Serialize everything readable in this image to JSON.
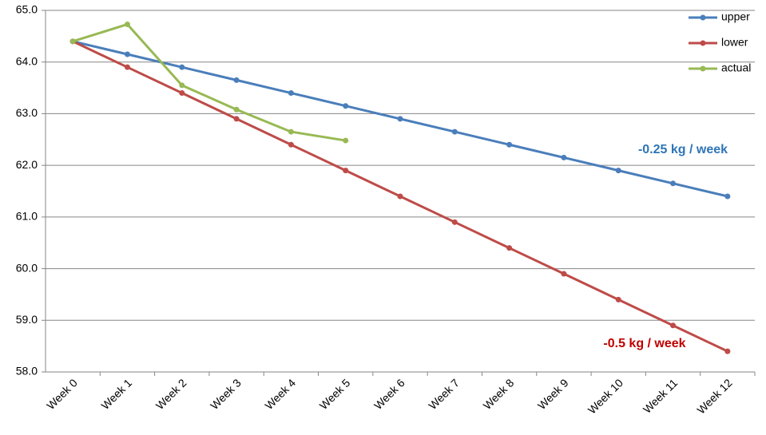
{
  "chart_data": {
    "type": "line",
    "categories": [
      "Week 0",
      "Week 1",
      "Week 2",
      "Week 3",
      "Week 4",
      "Week 5",
      "Week 6",
      "Week 7",
      "Week 8",
      "Week 9",
      "Week 10",
      "Week 11",
      "Week 12"
    ],
    "series": [
      {
        "name": "upper",
        "color": "#4a7ebb",
        "values": [
          64.4,
          64.15,
          63.9,
          63.65,
          63.4,
          63.15,
          62.9,
          62.65,
          62.4,
          62.15,
          61.9,
          61.65,
          61.4
        ]
      },
      {
        "name": "lower",
        "color": "#be4b48",
        "values": [
          64.4,
          63.9,
          63.4,
          62.9,
          62.4,
          61.9,
          61.4,
          60.9,
          60.4,
          59.9,
          59.4,
          58.9,
          58.4
        ]
      },
      {
        "name": "actual",
        "color": "#98b954",
        "values": [
          64.4,
          64.73,
          63.55,
          63.08,
          62.65,
          62.48,
          null,
          null,
          null,
          null,
          null,
          null,
          null
        ]
      }
    ],
    "ylim": [
      58,
      65
    ],
    "yticks": [
      {
        "value": 58,
        "label": "58.0"
      },
      {
        "value": 59,
        "label": "59.0"
      },
      {
        "value": 60,
        "label": "60.0"
      },
      {
        "value": 61,
        "label": "61.0"
      },
      {
        "value": 62,
        "label": "62.0"
      },
      {
        "value": 63,
        "label": "63.0"
      },
      {
        "value": 64,
        "label": "64.0"
      },
      {
        "value": 65,
        "label": "65.0"
      }
    ],
    "grid": true,
    "legend": "top-right",
    "annotations": [
      {
        "text": "-0.25 kg / week",
        "color": "#2e75b6"
      },
      {
        "text": "-0.5 kg / week",
        "color": "#c00000"
      }
    ]
  }
}
